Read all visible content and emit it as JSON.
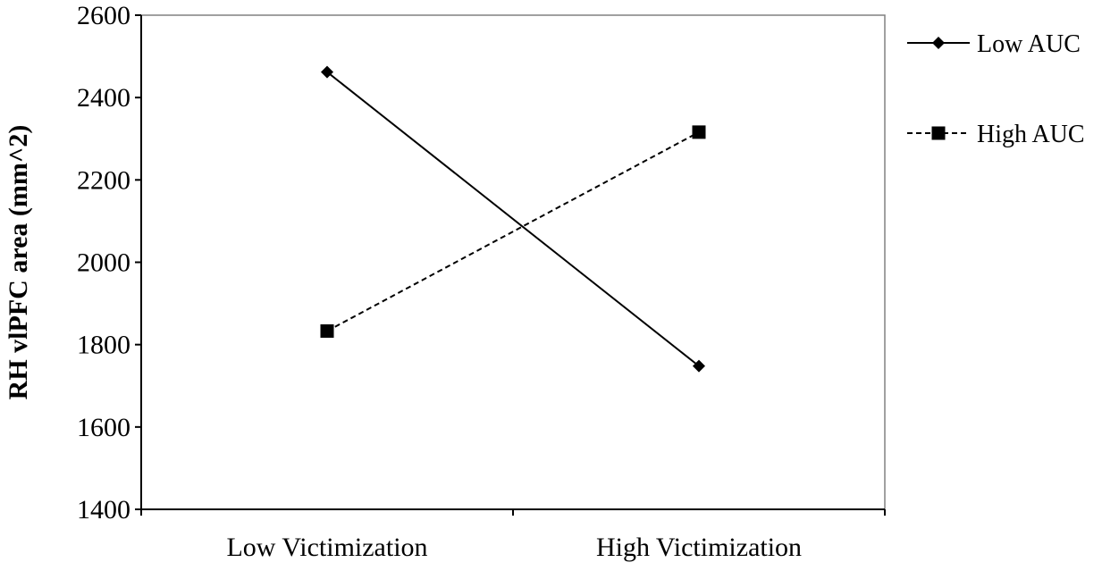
{
  "chart_data": {
    "type": "line",
    "categories": [
      "Low Victimization",
      "High Victimization"
    ],
    "series": [
      {
        "name": "Low AUC",
        "values": [
          2462,
          1748
        ],
        "marker": "diamond",
        "dash": "solid"
      },
      {
        "name": "High AUC",
        "values": [
          1833,
          2316
        ],
        "marker": "square",
        "dash": "dashed"
      }
    ],
    "title": "",
    "xlabel": "",
    "ylabel": "RH vlPFC area (mm^2)",
    "ylim": [
      1400,
      2600
    ],
    "yticks": [
      1400,
      1600,
      1800,
      2000,
      2200,
      2400,
      2600
    ],
    "grid": false,
    "legend_position": "right",
    "colors": {
      "line": "#000000",
      "plot_border": "#808080",
      "axis": "#000000"
    }
  }
}
